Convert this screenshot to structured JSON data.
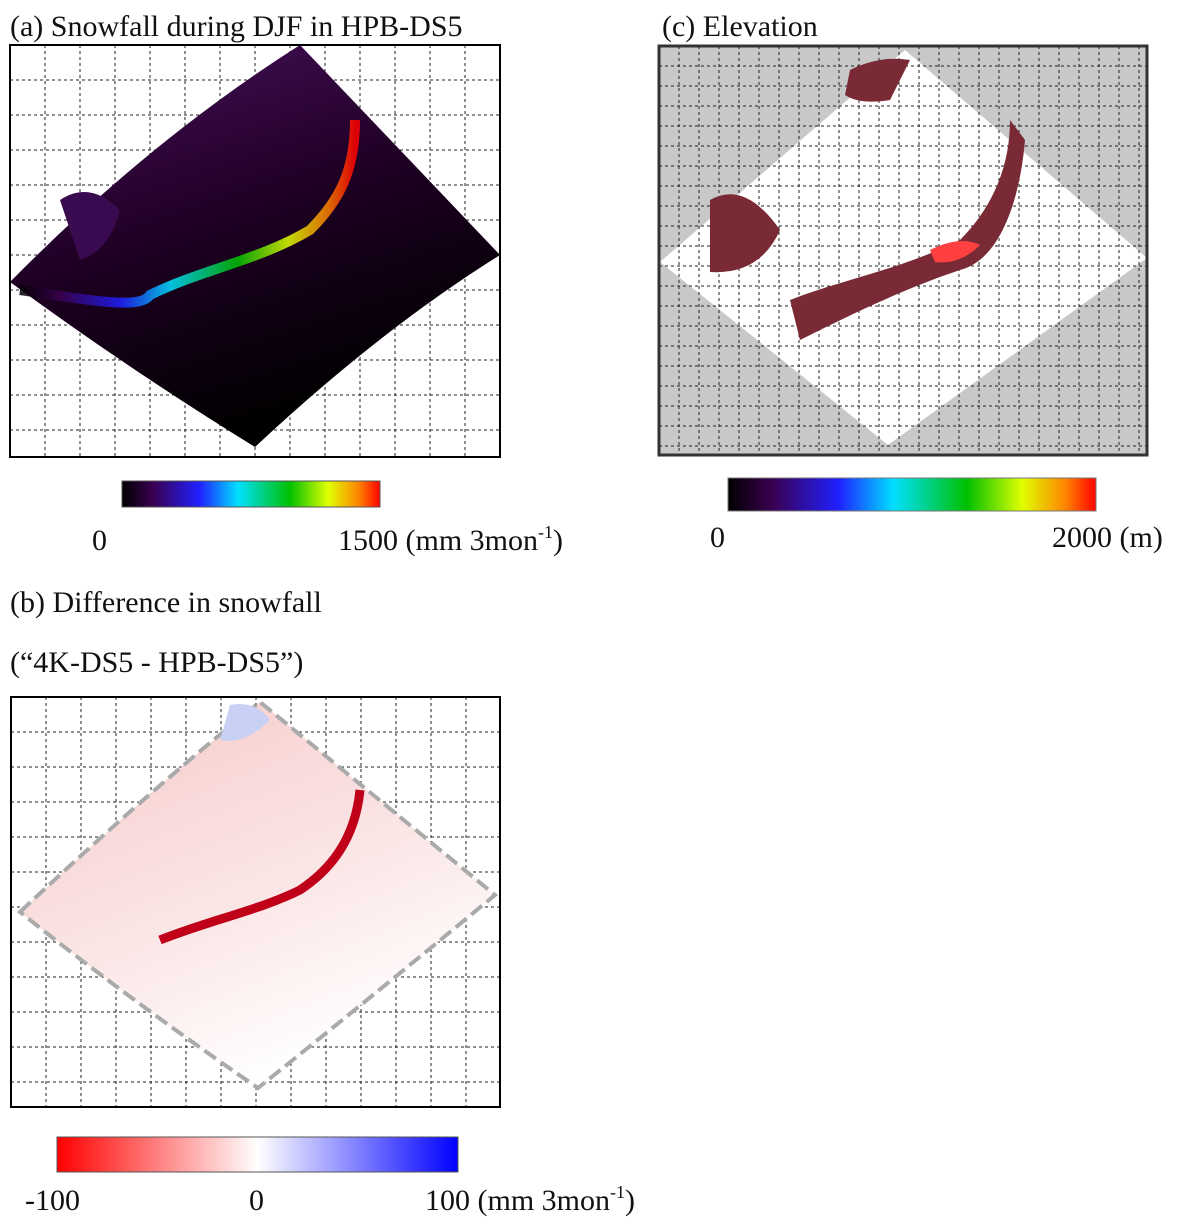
{
  "panels": [
    {
      "title": "(a)  Snowfall during DJF in HPB-DS5",
      "colorbar": {
        "min": "0",
        "max": "1500 (mm 3mon",
        "max_sup": "-1",
        "max_end": ")"
      }
    },
    {
      "title": "(c) Elevation",
      "colorbar": {
        "min": "0",
        "max": "2000 (m)"
      }
    },
    {
      "title": "(b) Difference in snowfall",
      "subtitle": "(“4K-DS5 - HPB-DS5”)",
      "colorbar": {
        "min": "-100",
        "mid": "0",
        "max": "100 (mm 3mon",
        "max_sup": "-1",
        "max_end": ")"
      }
    }
  ]
}
